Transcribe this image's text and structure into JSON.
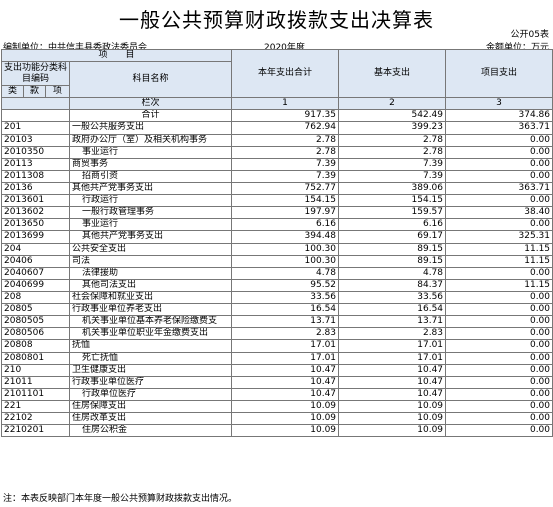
{
  "title": "一般公共预算财政拨款支出决算表",
  "form_no": "公开05表",
  "unit_label": "编制单位：中共信丰县委政法委员会",
  "year": "2020年度",
  "amount_unit": "金额单位：万元",
  "header": {
    "project": "项　　目",
    "code_group": "支出功能分类科目编码",
    "subject_name": "科目名称",
    "class": "类",
    "section": "款",
    "item": "项",
    "col_index_label": "栏次",
    "col1": "本年支出合计",
    "col2": "基本支出",
    "col3": "项目支出",
    "col1_idx": "1",
    "col2_idx": "2",
    "col3_idx": "3"
  },
  "total": {
    "label": "合计",
    "v1": "917.35",
    "v2": "542.49",
    "v3": "374.86"
  },
  "rows": [
    {
      "code": "201",
      "name": "一般公共服务支出",
      "v1": "762.94",
      "v2": "399.23",
      "v3": "363.71"
    },
    {
      "code": "20103",
      "name": "政府办公厅（室）及相关机构事务",
      "v1": "2.78",
      "v2": "2.78",
      "v3": "0.00"
    },
    {
      "code": "2010350",
      "name": "事业运行",
      "v1": "2.78",
      "v2": "2.78",
      "v3": "0.00"
    },
    {
      "code": "20113",
      "name": "商贸事务",
      "v1": "7.39",
      "v2": "7.39",
      "v3": "0.00"
    },
    {
      "code": "2011308",
      "name": "招商引资",
      "v1": "7.39",
      "v2": "7.39",
      "v3": "0.00"
    },
    {
      "code": "20136",
      "name": "其他共产党事务支出",
      "v1": "752.77",
      "v2": "389.06",
      "v3": "363.71"
    },
    {
      "code": "2013601",
      "name": "行政运行",
      "v1": "154.15",
      "v2": "154.15",
      "v3": "0.00"
    },
    {
      "code": "2013602",
      "name": "一般行政管理事务",
      "v1": "197.97",
      "v2": "159.57",
      "v3": "38.40"
    },
    {
      "code": "2013650",
      "name": "事业运行",
      "v1": "6.16",
      "v2": "6.16",
      "v3": "0.00"
    },
    {
      "code": "2013699",
      "name": "其他共产党事务支出",
      "v1": "394.48",
      "v2": "69.17",
      "v3": "325.31"
    },
    {
      "code": "204",
      "name": "公共安全支出",
      "v1": "100.30",
      "v2": "89.15",
      "v3": "11.15"
    },
    {
      "code": "20406",
      "name": "司法",
      "v1": "100.30",
      "v2": "89.15",
      "v3": "11.15"
    },
    {
      "code": "2040607",
      "name": "法律援助",
      "v1": "4.78",
      "v2": "4.78",
      "v3": "0.00"
    },
    {
      "code": "2040699",
      "name": "其他司法支出",
      "v1": "95.52",
      "v2": "84.37",
      "v3": "11.15"
    },
    {
      "code": "208",
      "name": "社会保障和就业支出",
      "v1": "33.56",
      "v2": "33.56",
      "v3": "0.00"
    },
    {
      "code": "20805",
      "name": "行政事业单位养老支出",
      "v1": "16.54",
      "v2": "16.54",
      "v3": "0.00"
    },
    {
      "code": "2080505",
      "name": "机关事业单位基本养老保险缴费支",
      "v1": "13.71",
      "v2": "13.71",
      "v3": "0.00"
    },
    {
      "code": "2080506",
      "name": "机关事业单位职业年金缴费支出",
      "v1": "2.83",
      "v2": "2.83",
      "v3": "0.00"
    },
    {
      "code": "20808",
      "name": "抚恤",
      "v1": "17.01",
      "v2": "17.01",
      "v3": "0.00"
    },
    {
      "code": "2080801",
      "name": "死亡抚恤",
      "v1": "17.01",
      "v2": "17.01",
      "v3": "0.00"
    },
    {
      "code": "210",
      "name": "卫生健康支出",
      "v1": "10.47",
      "v2": "10.47",
      "v3": "0.00"
    },
    {
      "code": "21011",
      "name": "行政事业单位医疗",
      "v1": "10.47",
      "v2": "10.47",
      "v3": "0.00"
    },
    {
      "code": "2101101",
      "name": "行政单位医疗",
      "v1": "10.47",
      "v2": "10.47",
      "v3": "0.00"
    },
    {
      "code": "221",
      "name": "住房保障支出",
      "v1": "10.09",
      "v2": "10.09",
      "v3": "0.00"
    },
    {
      "code": "22102",
      "name": "住房改革支出",
      "v1": "10.09",
      "v2": "10.09",
      "v3": "0.00"
    },
    {
      "code": "2210201",
      "name": "住房公积金",
      "v1": "10.09",
      "v2": "10.09",
      "v3": "0.00"
    }
  ],
  "note": "注：本表反映部门本年度一般公共预算财政拨款支出情况。"
}
